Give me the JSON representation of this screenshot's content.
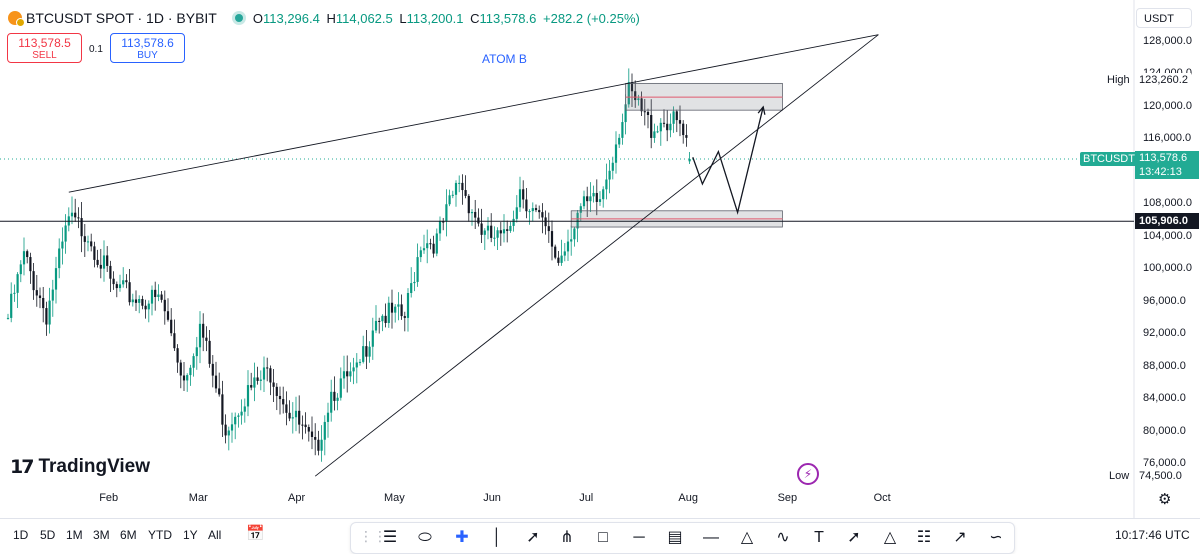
{
  "header": {
    "symbol_title": "BTCUSDT SPOT · 1D · BYBIT",
    "open_label": "O",
    "open": "113,296.4",
    "high_label": "H",
    "high": "114,062.5",
    "low_label": "L",
    "low": "113,200.1",
    "close_label": "C",
    "close": "113,578.6",
    "change": "+282.2 (+0.25%)"
  },
  "trade": {
    "sell_price": "113,578.5",
    "sell_label": "SELL",
    "spread": "0.1",
    "buy_price": "113,578.6",
    "buy_label": "BUY"
  },
  "annotation": "ATOM B",
  "currency": "USDT",
  "colors": {
    "up": "#089981",
    "down": "#131722",
    "price_tag": "#22ab94",
    "sell": "#f23645",
    "buy": "#2962ff",
    "zone_line": "#e05a6d"
  },
  "price_scale": {
    "ticks": [
      "128,000.0",
      "124,000.0",
      "120,000.0",
      "116,000.0",
      "108,000.0",
      "104,000.0",
      "100,000.0",
      "96,000.0",
      "92,000.0",
      "88,000.0",
      "84,000.0",
      "80,000.0",
      "76,000.0"
    ],
    "high_label": "High",
    "high_value": "123,260.2",
    "low_label": "Low",
    "low_value": "74,500.0",
    "symbol_tag": "BTCUSDT",
    "last_price": "113,578.6",
    "countdown": "13:42:13",
    "hline_value": "105,906.0"
  },
  "time_scale": {
    "ticks": [
      "Feb",
      "Mar",
      "Apr",
      "May",
      "Jun",
      "Jul",
      "Aug",
      "Sep",
      "Oct"
    ]
  },
  "logo": {
    "text": "TradingView"
  },
  "bottom_bar": {
    "ranges": [
      "1D",
      "5D",
      "1M",
      "3M",
      "6M",
      "YTD",
      "1Y",
      "All"
    ],
    "clock": "10:17:46 UTC"
  },
  "drawing_tools": [
    "horizontal-lines-icon",
    "ellipse-icon",
    "crosshair-icon",
    "vertical-line-icon",
    "trend-line-icon",
    "pitchfork-icon",
    "rectangle-icon",
    "horizontal-ray-icon",
    "parallel-channel-icon",
    "horizontal-line-icon",
    "triangle-icon",
    "zigzag-icon",
    "text-icon",
    "arrow-marker-icon",
    "pattern-icon",
    "long-position-icon",
    "arrow-icon",
    "path-icon"
  ],
  "chart_data": {
    "type": "candlestick",
    "x_start": "2025-01-01",
    "ylim": [
      73000,
      129500
    ],
    "x_ticks": [
      "Feb",
      "Mar",
      "Apr",
      "May",
      "Jun",
      "Jul",
      "Aug",
      "Sep",
      "Oct"
    ],
    "y_ticks": [
      128000,
      124000,
      120000,
      116000,
      108000,
      104000,
      100000,
      96000,
      92000,
      88000,
      84000,
      80000,
      76000
    ],
    "anchors": [
      [
        "2025-01-01",
        94000
      ],
      [
        "2025-01-06",
        101500
      ],
      [
        "2025-01-13",
        94500
      ],
      [
        "2025-01-20",
        106000
      ],
      [
        "2025-01-26",
        104500
      ],
      [
        "2025-02-03",
        97500
      ],
      [
        "2025-02-10",
        96500
      ],
      [
        "2025-02-18",
        96000
      ],
      [
        "2025-02-25",
        86500
      ],
      [
        "2025-03-02",
        93000
      ],
      [
        "2025-03-10",
        80500
      ],
      [
        "2025-03-15",
        84000
      ],
      [
        "2025-03-24",
        87500
      ],
      [
        "2025-03-30",
        82500
      ],
      [
        "2025-04-07",
        77500
      ],
      [
        "2025-04-12",
        85000
      ],
      [
        "2025-04-20",
        87000
      ],
      [
        "2025-04-26",
        94500
      ],
      [
        "2025-05-05",
        94000
      ],
      [
        "2025-05-10",
        103500
      ],
      [
        "2025-05-15",
        103500
      ],
      [
        "2025-05-22",
        111000
      ],
      [
        "2025-05-30",
        104000
      ],
      [
        "2025-06-05",
        103500
      ],
      [
        "2025-06-10",
        110000
      ],
      [
        "2025-06-18",
        104500
      ],
      [
        "2025-06-22",
        101000
      ],
      [
        "2025-06-28",
        107000
      ],
      [
        "2025-07-05",
        108500
      ],
      [
        "2025-07-11",
        117500
      ],
      [
        "2025-07-14",
        121500
      ],
      [
        "2025-07-21",
        117500
      ],
      [
        "2025-07-25",
        118500
      ],
      [
        "2025-07-30",
        117500
      ],
      [
        "2025-08-02",
        113578.6
      ]
    ],
    "last_candle": {
      "date": "2025-08-02",
      "open": 113296.4,
      "high": 114062.5,
      "low": 113200.1,
      "close": 113578.6
    },
    "price_high": 123260.2,
    "price_low": 74500.0,
    "horizontal_line": 105906.0,
    "trendlines": [
      {
        "from": [
          "2025-01-20",
          109500
        ],
        "to": [
          "2025-09-30",
          128900
        ]
      },
      {
        "from": [
          "2025-04-07",
          74500
        ],
        "to": [
          "2025-09-30",
          128900
        ]
      }
    ],
    "zones": [
      {
        "from": "2025-07-13",
        "to": "2025-08-31",
        "top": 122900,
        "bottom": 119600,
        "mid": 121200
      },
      {
        "from": "2025-06-26",
        "to": "2025-08-31",
        "top": 107200,
        "bottom": 105200,
        "mid": 106200
      }
    ],
    "projection": [
      [
        "2025-08-03",
        113800
      ],
      [
        "2025-08-06",
        110500
      ],
      [
        "2025-08-11",
        114500
      ],
      [
        "2025-08-17",
        107000
      ],
      [
        "2025-08-25",
        120000
      ]
    ]
  }
}
